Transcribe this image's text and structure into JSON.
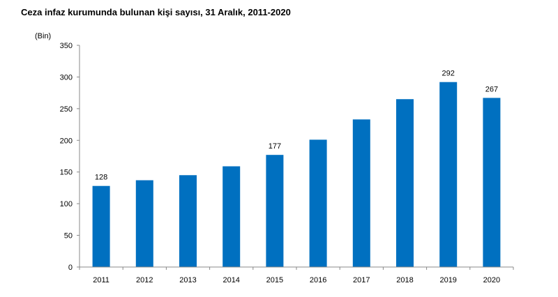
{
  "chart_data": {
    "type": "bar",
    "title": "Ceza infaz kurumunda bulunan kişi sayısı, 31 Aralık, 2011-2020",
    "ylabel": "(Bin)",
    "xlabel": "",
    "categories": [
      "2011",
      "2012",
      "2013",
      "2014",
      "2015",
      "2016",
      "2017",
      "2018",
      "2019",
      "2020"
    ],
    "values": [
      128,
      137,
      145,
      159,
      177,
      201,
      233,
      265,
      292,
      267
    ],
    "data_labels": {
      "2011": "128",
      "2015": "177",
      "2019": "292",
      "2020": "267"
    },
    "yticks": [
      "0",
      "50",
      "100",
      "150",
      "200",
      "250",
      "300",
      "350"
    ],
    "ylim": [
      0,
      350
    ],
    "grid": false,
    "bar_color": "#0070C0"
  }
}
